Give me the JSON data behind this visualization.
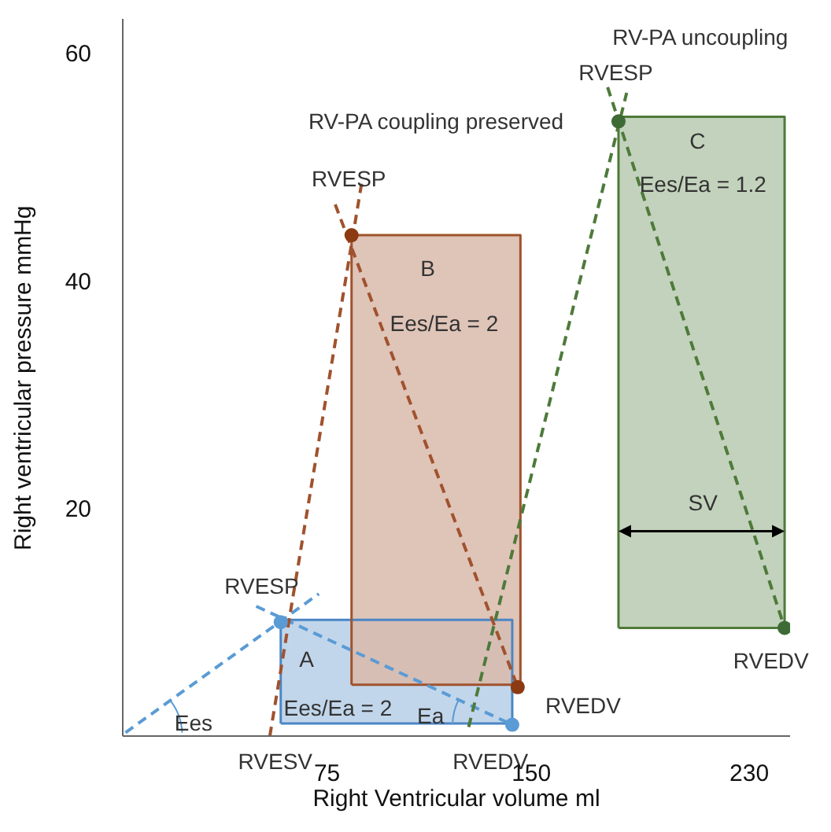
{
  "chart_data": {
    "type": "line",
    "xlabel": "Right Ventricular volume ml",
    "ylabel": "Right ventricular pressure mmHg",
    "xlim": [
      0,
      245
    ],
    "xticks": [
      75,
      150,
      230
    ],
    "ylim": [
      0,
      63
    ],
    "yticks": [
      20,
      40,
      60
    ],
    "grid": false,
    "legend": false,
    "line_style": "dashed",
    "series": [
      {
        "type": "area",
        "color": "#4a86c5",
        "line_style": "solid",
        "x": [
          58,
          58,
          143,
          143,
          58
        ],
        "values": [
          1.1,
          10.2,
          10.2,
          1.1,
          1.1
        ]
      },
      {
        "type": "area",
        "color": "#a0522d",
        "line_style": "solid",
        "x": [
          84,
          84,
          146,
          146,
          84
        ],
        "values": [
          4.5,
          44,
          44,
          4.5,
          4.5
        ]
      },
      {
        "type": "area",
        "color": "#4e7a3a",
        "line_style": "solid",
        "x": [
          182,
          182,
          243,
          243,
          182
        ],
        "values": [
          9.5,
          54.4,
          54.4,
          9.5,
          9.5
        ]
      },
      {
        "color": "#5b9bd5",
        "x": [
          1,
          72
        ],
        "values": [
          0.3,
          12.5
        ]
      },
      {
        "color": "#5b9bd5",
        "x": [
          49,
          143
        ],
        "values": [
          11.4,
          1
        ]
      },
      {
        "color": "#a0522d",
        "x": [
          54,
          88
        ],
        "values": [
          0,
          49
        ]
      },
      {
        "color": "#a0522d",
        "x": [
          78,
          145
        ],
        "values": [
          46.7,
          4.3
        ]
      },
      {
        "color": "#4e7a3a",
        "x": [
          127,
          185
        ],
        "values": [
          0.8,
          56.5
        ]
      },
      {
        "color": "#4e7a3a",
        "x": [
          178,
          243
        ],
        "values": [
          57,
          9.5
        ]
      },
      {
        "type": "scatter",
        "marker": "circle",
        "color": "#5b9bd5",
        "x": [
          58,
          143
        ],
        "values": [
          10,
          1
        ]
      },
      {
        "type": "scatter",
        "marker": "circle",
        "color": "#8b3a12",
        "x": [
          84,
          145
        ],
        "values": [
          44,
          4.3
        ]
      },
      {
        "type": "scatter",
        "marker": "circle",
        "color": "#3e6b35",
        "x": [
          182,
          243
        ],
        "values": [
          54,
          9.5
        ]
      }
    ],
    "annotations": [
      "RV-PA uncoupling",
      "RV-PA coupling preserved",
      "RVESP",
      "C",
      "Ees/Ea = 1.2",
      "RVESP",
      "B",
      "Ees/Ea = 2",
      "SV",
      "RVESP",
      "RVEDV",
      "A",
      "RVEDV",
      "Ees/Ea = 2",
      "Ea",
      "Ees",
      "RVESV",
      "RVEDV"
    ]
  }
}
